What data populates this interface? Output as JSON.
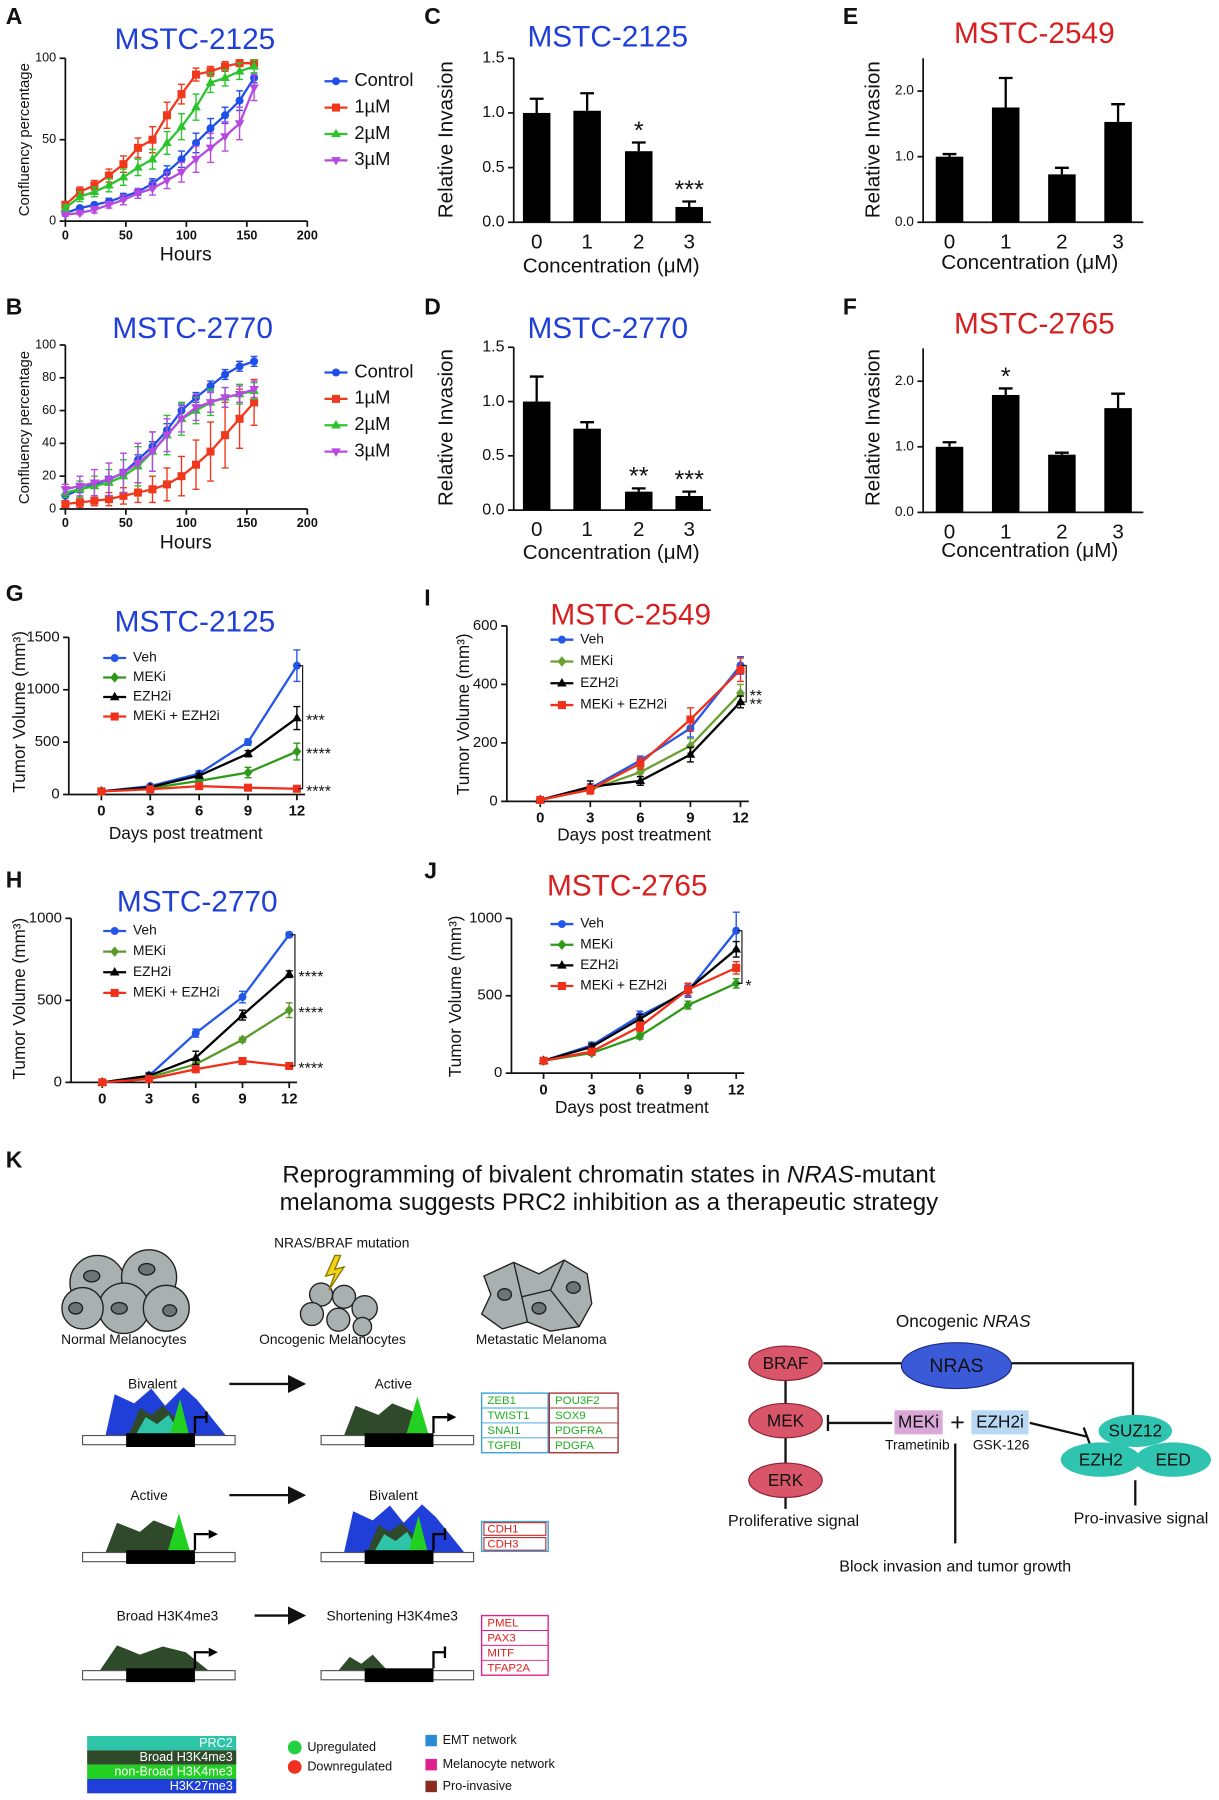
{
  "chart_data": [
    {
      "panel": "A",
      "type": "line",
      "title": "MSTC-2125",
      "title_color": "#1f3fd8",
      "xlabel": "Hours",
      "ylabel": "Confluency percentage",
      "x": [
        0,
        12,
        24,
        36,
        48,
        60,
        72,
        84,
        96,
        108,
        120,
        132,
        144,
        156
      ],
      "xlim": [
        0,
        200
      ],
      "xticks": [
        0,
        50,
        100,
        150,
        200
      ],
      "ylim": [
        0,
        100
      ],
      "yticks": [
        0,
        50,
        100
      ],
      "series": [
        {
          "name": "Control",
          "color": "#1f4fe8",
          "marker": "circle",
          "values": [
            5,
            8,
            10,
            12,
            15,
            18,
            23,
            30,
            38,
            48,
            57,
            65,
            74,
            88
          ],
          "errors": [
            1,
            1,
            1,
            2,
            2,
            2,
            3,
            4,
            5,
            6,
            6,
            5,
            6,
            3
          ]
        },
        {
          "name": "1µM",
          "color": "#f0381c",
          "marker": "square",
          "values": [
            10,
            18,
            22,
            28,
            35,
            45,
            50,
            65,
            78,
            90,
            92,
            95,
            97,
            97
          ],
          "errors": [
            2,
            3,
            3,
            4,
            5,
            6,
            8,
            8,
            6,
            4,
            3,
            3,
            2,
            2
          ]
        },
        {
          "name": "2µM",
          "color": "#2cc42c",
          "marker": "triangle",
          "values": [
            8,
            15,
            18,
            22,
            27,
            33,
            38,
            48,
            58,
            70,
            85,
            88,
            92,
            95
          ],
          "errors": [
            2,
            3,
            3,
            4,
            5,
            5,
            6,
            7,
            8,
            8,
            6,
            5,
            5,
            4
          ]
        },
        {
          "name": "3µM",
          "color": "#b64ae0",
          "marker": "triangle-down",
          "values": [
            4,
            5,
            7,
            10,
            13,
            17,
            20,
            25,
            30,
            38,
            45,
            52,
            60,
            82
          ],
          "errors": [
            1,
            1,
            2,
            2,
            3,
            3,
            4,
            5,
            6,
            8,
            9,
            9,
            10,
            8
          ]
        }
      ]
    },
    {
      "panel": "B",
      "type": "line",
      "title": "MSTC-2770",
      "title_color": "#1f3fd8",
      "xlabel": "Hours",
      "ylabel": "Confluency percentage",
      "x": [
        0,
        12,
        24,
        36,
        48,
        60,
        72,
        84,
        96,
        108,
        120,
        132,
        144,
        156
      ],
      "xlim": [
        0,
        200
      ],
      "xticks": [
        0,
        50,
        100,
        150,
        200
      ],
      "ylim": [
        0,
        100
      ],
      "yticks": [
        0,
        20,
        40,
        60,
        80,
        100
      ],
      "series": [
        {
          "name": "Control",
          "color": "#1f4fe8",
          "marker": "circle",
          "values": [
            8,
            12,
            15,
            18,
            22,
            30,
            38,
            48,
            60,
            68,
            75,
            82,
            87,
            90
          ],
          "errors": [
            1,
            2,
            2,
            2,
            2,
            3,
            3,
            4,
            4,
            3,
            3,
            3,
            3,
            3
          ]
        },
        {
          "name": "1µM",
          "color": "#f0381c",
          "marker": "square",
          "values": [
            3,
            4,
            5,
            6,
            8,
            10,
            12,
            15,
            20,
            27,
            35,
            45,
            55,
            65
          ],
          "errors": [
            2,
            3,
            3,
            4,
            5,
            6,
            8,
            10,
            12,
            15,
            18,
            20,
            18,
            14
          ]
        },
        {
          "name": "2µM",
          "color": "#2cc42c",
          "marker": "triangle",
          "values": [
            10,
            12,
            14,
            16,
            20,
            26,
            35,
            45,
            55,
            60,
            65,
            68,
            70,
            72
          ],
          "errors": [
            3,
            5,
            6,
            8,
            10,
            12,
            12,
            12,
            10,
            8,
            8,
            6,
            6,
            5
          ]
        },
        {
          "name": "3µM",
          "color": "#b64ae0",
          "marker": "triangle-down",
          "values": [
            12,
            14,
            16,
            18,
            22,
            28,
            35,
            45,
            55,
            62,
            65,
            68,
            70,
            73
          ],
          "errors": [
            3,
            6,
            8,
            10,
            12,
            12,
            12,
            10,
            8,
            8,
            6,
            6,
            5,
            5
          ]
        }
      ]
    },
    {
      "panel": "C",
      "type": "bar",
      "title": "MSTC-2125",
      "title_color": "#1f3fd8",
      "xlabel": "Concentration (μM)",
      "ylabel": "Relative Invasion",
      "color": "#000000",
      "categories": [
        "0",
        "1",
        "2",
        "3"
      ],
      "values": [
        1.0,
        1.02,
        0.65,
        0.14
      ],
      "errors": [
        0.13,
        0.16,
        0.08,
        0.05
      ],
      "significance": [
        null,
        null,
        "*",
        "***"
      ],
      "ylim": [
        0,
        1.5
      ],
      "yticks": [
        {
          "value": 0,
          "label": "0.0"
        },
        0.5,
        {
          "value": 1,
          "label": "1.0"
        },
        1.5
      ]
    },
    {
      "panel": "D",
      "type": "bar",
      "title": "MSTC-2770",
      "title_color": "#1f3fd8",
      "xlabel": "Concentration (μM)",
      "ylabel": "Relative Invasion",
      "color": "#000000",
      "categories": [
        "0",
        "1",
        "2",
        "3"
      ],
      "values": [
        1.0,
        0.75,
        0.17,
        0.13
      ],
      "errors": [
        0.23,
        0.06,
        0.03,
        0.04
      ],
      "significance": [
        null,
        null,
        "**",
        "***"
      ],
      "ylim": [
        0,
        1.5
      ],
      "yticks": [
        {
          "value": 0,
          "label": "0.0"
        },
        0.5,
        {
          "value": 1,
          "label": "1.0"
        },
        1.5
      ]
    },
    {
      "panel": "E",
      "type": "bar",
      "title": "MSTC-2549",
      "title_color": "#d81f1f",
      "xlabel": "Concentration (μM)",
      "ylabel": "Relative Invasion",
      "color": "#000000",
      "categories": [
        "0",
        "1",
        "2",
        "3"
      ],
      "values": [
        1.0,
        1.75,
        0.73,
        1.53
      ],
      "errors": [
        0.04,
        0.45,
        0.1,
        0.27
      ],
      "ylim": [
        0,
        2.5
      ],
      "yticks": [
        {
          "value": 0,
          "label": "0.0"
        },
        {
          "value": 1,
          "label": "1.0"
        },
        {
          "value": 2,
          "label": "2.0"
        }
      ]
    },
    {
      "panel": "F",
      "type": "bar",
      "title": "MSTC-2765",
      "title_color": "#d81f1f",
      "xlabel": "Concentration (μM)",
      "ylabel": "Relative Invasion",
      "color": "#000000",
      "categories": [
        "0",
        "1",
        "2",
        "3"
      ],
      "values": [
        1.0,
        1.79,
        0.88,
        1.59
      ],
      "errors": [
        0.07,
        0.1,
        0.03,
        0.22
      ],
      "significance": [
        null,
        "*",
        null,
        null
      ],
      "ylim": [
        0,
        2.5
      ],
      "yticks": [
        {
          "value": 0,
          "label": "0.0"
        },
        {
          "value": 1,
          "label": "1.0"
        },
        {
          "value": 2,
          "label": "2.0"
        }
      ]
    },
    {
      "panel": "G",
      "type": "line",
      "title": "MSTC-2125",
      "title_color": "#1f3fd8",
      "xlabel": "Days post treatment",
      "ylabel": "Tumor Volume (mm³)",
      "x": [
        0,
        3,
        6,
        9,
        12
      ],
      "xlim": [
        -2,
        12.5
      ],
      "xticks": [
        0,
        3,
        6,
        9,
        12
      ],
      "ylim": [
        0,
        1500
      ],
      "yticks": [
        0,
        500,
        1000,
        1500
      ],
      "annotations": [
        "***",
        "****",
        "****"
      ],
      "series": [
        {
          "name": "Veh",
          "color": "#2457e8",
          "marker": "circle",
          "values": [
            30,
            80,
            200,
            500,
            1230
          ],
          "errors": [
            10,
            15,
            25,
            30,
            150
          ]
        },
        {
          "name": "MEKi",
          "color": "#2f9a1a",
          "marker": "diamond",
          "values": [
            30,
            60,
            130,
            210,
            410
          ],
          "errors": [
            5,
            10,
            15,
            50,
            80
          ]
        },
        {
          "name": "EZH2i",
          "color": "#000000",
          "marker": "triangle",
          "values": [
            30,
            70,
            180,
            390,
            730
          ],
          "errors": [
            5,
            10,
            20,
            30,
            110
          ]
        },
        {
          "name": "MEKi + EZH2i",
          "color": "#f0301a",
          "marker": "square",
          "values": [
            30,
            50,
            80,
            65,
            55
          ],
          "errors": [
            5,
            10,
            15,
            10,
            10
          ]
        }
      ]
    },
    {
      "panel": "H",
      "type": "line",
      "title": "MSTC-2770",
      "title_color": "#1f3fd8",
      "ylabel": "Tumor Volume (mm³)",
      "x": [
        0,
        3,
        6,
        9,
        12
      ],
      "xlim": [
        -2,
        12.5
      ],
      "xticks": [
        0,
        3,
        6,
        9,
        12
      ],
      "ylim": [
        0,
        1000
      ],
      "yticks": [
        0,
        500,
        1000
      ],
      "annotations": [
        "****",
        "****",
        "****"
      ],
      "series": [
        {
          "name": "Veh",
          "color": "#2457e8",
          "marker": "circle",
          "values": [
            0,
            40,
            300,
            520,
            900
          ],
          "errors": [
            5,
            20,
            25,
            35,
            15
          ]
        },
        {
          "name": "MEKi",
          "color": "#5a9a2a",
          "marker": "diamond",
          "values": [
            0,
            30,
            110,
            260,
            440
          ],
          "errors": [
            5,
            10,
            15,
            15,
            45
          ]
        },
        {
          "name": "EZH2i",
          "color": "#000000",
          "marker": "triangle",
          "values": [
            0,
            40,
            150,
            410,
            660
          ],
          "errors": [
            5,
            15,
            40,
            30,
            20
          ]
        },
        {
          "name": "MEKi + EZH2i",
          "color": "#f0301a",
          "marker": "square",
          "values": [
            0,
            20,
            80,
            130,
            100
          ],
          "errors": [
            5,
            10,
            20,
            15,
            15
          ]
        }
      ]
    },
    {
      "panel": "I",
      "type": "line",
      "title": "MSTC-2549",
      "title_color": "#d81f1f",
      "xlabel": "Days post treatment",
      "ylabel": "Tumor Volume (mm³)",
      "x": [
        0,
        3,
        6,
        9,
        12
      ],
      "xlim": [
        -2,
        12.5
      ],
      "xticks": [
        0,
        3,
        6,
        9,
        12
      ],
      "ylim": [
        0,
        600
      ],
      "yticks": [
        0,
        200,
        400,
        600
      ],
      "annotations": [
        "**",
        "**"
      ],
      "series": [
        {
          "name": "Veh",
          "color": "#2457e8",
          "marker": "circle",
          "values": [
            5,
            45,
            140,
            250,
            465
          ],
          "errors": [
            5,
            15,
            15,
            30,
            30
          ]
        },
        {
          "name": "MEKi",
          "color": "#6aa030",
          "marker": "diamond",
          "values": [
            5,
            40,
            100,
            190,
            370
          ],
          "errors": [
            5,
            10,
            15,
            25,
            30
          ]
        },
        {
          "name": "EZH2i",
          "color": "#000000",
          "marker": "triangle",
          "values": [
            5,
            50,
            70,
            160,
            340
          ],
          "errors": [
            5,
            20,
            15,
            25,
            20
          ]
        },
        {
          "name": "MEKi + EZH2i",
          "color": "#f0301a",
          "marker": "square",
          "values": [
            5,
            40,
            130,
            280,
            450
          ],
          "errors": [
            5,
            15,
            20,
            40,
            40
          ]
        }
      ]
    },
    {
      "panel": "J",
      "type": "line",
      "title": "MSTC-2765",
      "title_color": "#d81f1f",
      "xlabel": "Days post treatment",
      "ylabel": "Tumor Volume (mm³)",
      "x": [
        0,
        3,
        6,
        9,
        12
      ],
      "xlim": [
        -2,
        12.5
      ],
      "xticks": [
        0,
        3,
        6,
        9,
        12
      ],
      "ylim": [
        0,
        1000
      ],
      "yticks": [
        0,
        500,
        1000
      ],
      "annotations": [
        "*"
      ],
      "series": [
        {
          "name": "Veh",
          "color": "#2457e8",
          "marker": "circle",
          "values": [
            80,
            180,
            370,
            530,
            920
          ],
          "errors": [
            10,
            20,
            30,
            40,
            120
          ]
        },
        {
          "name": "MEKi",
          "color": "#2f9a1a",
          "marker": "diamond",
          "values": [
            80,
            130,
            240,
            440,
            580
          ],
          "errors": [
            10,
            15,
            20,
            25,
            30
          ]
        },
        {
          "name": "EZH2i",
          "color": "#000000",
          "marker": "triangle",
          "values": [
            80,
            170,
            350,
            540,
            800
          ],
          "errors": [
            10,
            20,
            30,
            40,
            50
          ]
        },
        {
          "name": "MEKi + EZH2i",
          "color": "#f0301a",
          "marker": "square",
          "values": [
            80,
            140,
            300,
            540,
            680
          ],
          "errors": [
            10,
            15,
            30,
            40,
            40
          ]
        }
      ]
    }
  ],
  "diagram": {
    "panel": "K",
    "title": [
      [
        "Reprogramming of bivalent chromatin states in ",
        "NRAS",
        "-mutant"
      ],
      [
        "melanoma suggests PRC2 inhibition as a therapeutic strategy"
      ]
    ],
    "mutation": "NRAS/BRAF mutation",
    "cell_labels": [
      "Normal Melanocytes",
      "Oncogenic Melanocytes",
      "Metastatic Melanoma"
    ],
    "transitions": [
      {
        "from": "Bivalent",
        "to": "Active",
        "genes": [
          [
            "ZEB1",
            "TWIST1",
            "SNAI1",
            "TGFBI"
          ],
          [
            "POU3F2",
            "SOX9",
            "PDGFRA",
            "PDGFA"
          ]
        ]
      },
      {
        "from": "Active",
        "to": "Bivalent",
        "genes": [
          [
            "CDH1",
            "CDH3"
          ]
        ]
      },
      {
        "from": "Broad H3K4me3",
        "to": "Shortening H3K4me3",
        "genes": [
          [
            "PMEL",
            "PAX3",
            "MITF",
            "TFAP2A"
          ]
        ]
      }
    ],
    "legend": {
      "marks": [
        "PRC2",
        "Broad H3K4me3",
        "non-Broad H3K4me3",
        "H3K27me3"
      ],
      "regulation": [
        "Upregulated",
        "Downregulated"
      ],
      "networks": [
        "EMT network",
        "Melanocyte network",
        "Pro-invasive"
      ]
    },
    "pathway": {
      "header": [
        "Oncogenic ",
        "NRAS"
      ],
      "nodes": [
        "NRAS",
        "BRAF",
        "MEK",
        "ERK",
        "SUZ12",
        "EZH2",
        "EED"
      ],
      "drugs": [
        {
          "name": "MEKi",
          "compound": "Trametinib"
        },
        {
          "name": "EZH2i",
          "compound": "GSK-126"
        }
      ],
      "plus": "+",
      "outputs": [
        "Proliferative signal",
        "Pro-invasive signal",
        "Block invasion and tumor growth"
      ]
    }
  }
}
